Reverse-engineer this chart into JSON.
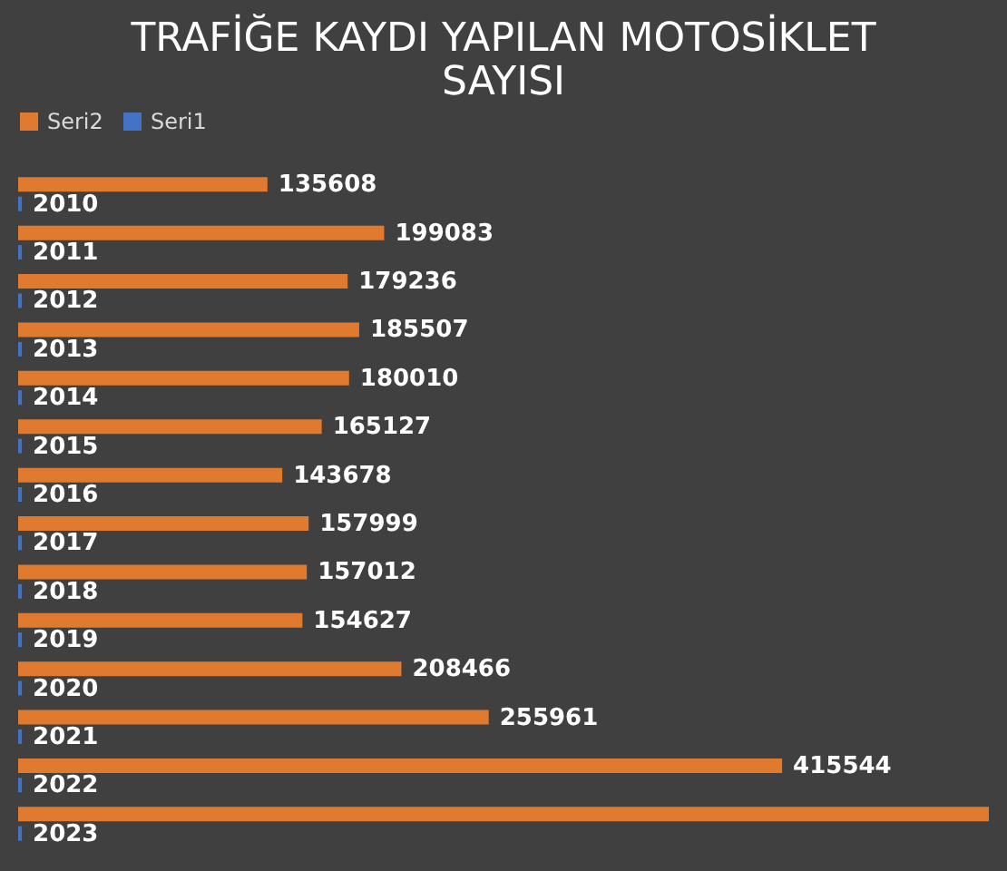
{
  "chart_data": {
    "type": "bar",
    "orientation": "horizontal",
    "title": [
      "TRAFİĞE KAYDI YAPILAN MOTOSİKLET",
      "SAYISI"
    ],
    "categories": [
      null,
      null,
      null,
      null,
      null,
      null,
      null,
      null,
      null,
      null,
      null,
      null,
      null,
      null
    ],
    "series": [
      {
        "name": "Seri2",
        "color": "#e07a2f",
        "values": [
          135608,
          199083,
          179236,
          185507,
          180010,
          165127,
          143678,
          157999,
          157012,
          154627,
          208466,
          255961,
          415544,
          528000
        ],
        "value_labels": [
          "135608",
          "199083",
          "179236",
          "185507",
          "180010",
          "165127",
          "143678",
          "157999",
          "157012",
          "154627",
          "208466",
          "255961",
          "415544",
          null
        ]
      },
      {
        "name": "Seri1",
        "color": "#4472c4",
        "values": [
          2010,
          2011,
          2012,
          2013,
          2014,
          2015,
          2016,
          2017,
          2018,
          2019,
          2020,
          2021,
          2022,
          2023
        ],
        "value_labels": [
          "2010",
          "2011",
          "2012",
          "2013",
          "2014",
          "2015",
          "2016",
          "2017",
          "2018",
          "2019",
          "2020",
          "2021",
          "2022",
          "2023"
        ]
      }
    ],
    "legend": "top",
    "grid": false
  }
}
